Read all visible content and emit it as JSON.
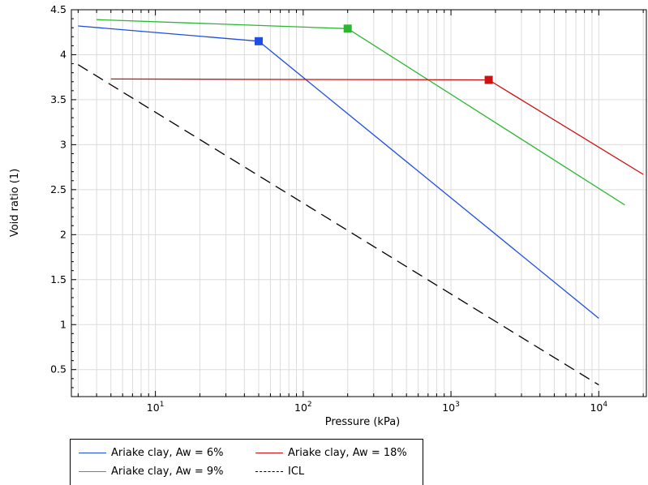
{
  "chart_data": {
    "type": "line",
    "xlabel": "Pressure (kPa)",
    "ylabel": "Void ratio (1)",
    "xscale": "log",
    "xlim": [
      2.7,
      21000
    ],
    "ylim": [
      0.2,
      4.5
    ],
    "grid": true,
    "legend_position": "bottom",
    "x_tick_labels": [
      {
        "base": "10",
        "exp": "1",
        "value": 10
      },
      {
        "base": "10",
        "exp": "2",
        "value": 100
      },
      {
        "base": "10",
        "exp": "3",
        "value": 1000
      },
      {
        "base": "10",
        "exp": "4",
        "value": 10000
      }
    ],
    "y_ticks": [
      "0.5",
      "1",
      "1.5",
      "2",
      "2.5",
      "3",
      "3.5",
      "4",
      "4.5"
    ],
    "series": [
      {
        "name": "Ariake clay, Aw = 6%",
        "color": "#1f4fe0",
        "style": "solid",
        "x": [
          3,
          50,
          10000
        ],
        "y": [
          4.32,
          4.15,
          1.07
        ],
        "marker": {
          "x": 50,
          "y": 4.15
        }
      },
      {
        "name": "Ariake clay, Aw = 9%",
        "color": "#2ab830",
        "style": "solid",
        "x": [
          4,
          200,
          15000
        ],
        "y": [
          4.39,
          4.29,
          2.33
        ],
        "marker": {
          "x": 200,
          "y": 4.29
        }
      },
      {
        "name": "Ariake clay, Aw = 18%",
        "color": "#cc1111",
        "style": "solid",
        "x": [
          5,
          1800,
          20000
        ],
        "y": [
          3.73,
          3.72,
          2.67
        ],
        "marker": {
          "x": 1800,
          "y": 3.72
        }
      },
      {
        "name": "ICL",
        "color": "#000000",
        "style": "dashed",
        "x": [
          3,
          10000
        ],
        "y": [
          3.89,
          0.33
        ]
      }
    ]
  },
  "legend": {
    "items": [
      {
        "label": "Ariake clay, Aw = 6%",
        "color": "#1f4fe0",
        "dashed": false
      },
      {
        "label": "Ariake clay, Aw = 18%",
        "color": "#cc1111",
        "dashed": false
      },
      {
        "label": "Ariake clay, Aw = 9%",
        "color": "#2ab830",
        "dashed": false
      },
      {
        "label": "ICL",
        "color": "#000000",
        "dashed": true
      }
    ]
  }
}
